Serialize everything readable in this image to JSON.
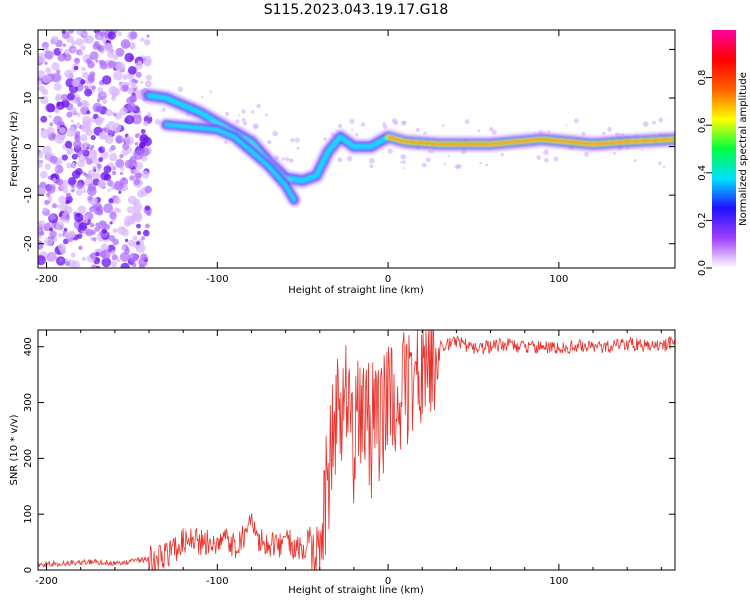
{
  "title": "S115.2023.043.19.17.G18",
  "colors": {
    "snr_line": "#e8312a",
    "frame": "#000000",
    "colormap": [
      "#ffffff",
      "#a040ff",
      "#2010ff",
      "#00e0ff",
      "#00ff40",
      "#ffff00",
      "#ff6000",
      "#ff0000",
      "#ff00a0"
    ]
  },
  "chart_data": [
    {
      "type": "heatmap",
      "title": "S115.2023.043.19.17.G18",
      "xlabel": "Height of straight line (km)",
      "ylabel": "Frequency (Hz)",
      "xlim": [
        -205,
        168
      ],
      "ylim": [
        -25,
        24
      ],
      "xticks": [
        -200,
        -100,
        0,
        100
      ],
      "yticks": [
        -20,
        -10,
        0,
        10,
        20
      ],
      "colorbar": {
        "label": "Normalized spectral amplitude",
        "range": [
          0,
          1
        ],
        "ticks": [
          "0.0",
          "0.2",
          "0.4",
          "0.6",
          "0.8"
        ]
      },
      "ridge": [
        {
          "x": -140,
          "y": 10.5
        },
        {
          "x": -130,
          "y": 10
        },
        {
          "x": -120,
          "y": 8.5
        },
        {
          "x": -110,
          "y": 7
        },
        {
          "x": -100,
          "y": 5
        },
        {
          "x": -90,
          "y": 3
        },
        {
          "x": -80,
          "y": 1
        },
        {
          "x": -70,
          "y": -3
        },
        {
          "x": -60,
          "y": -6.5
        },
        {
          "x": -50,
          "y": -7
        },
        {
          "x": -42,
          "y": -6
        },
        {
          "x": -35,
          "y": -1
        },
        {
          "x": -28,
          "y": 2
        },
        {
          "x": -20,
          "y": 0
        },
        {
          "x": -10,
          "y": 0
        },
        {
          "x": 0,
          "y": 2
        },
        {
          "x": 10,
          "y": 1
        },
        {
          "x": 30,
          "y": 0.5
        },
        {
          "x": 60,
          "y": 0.5
        },
        {
          "x": 90,
          "y": 1.5
        },
        {
          "x": 120,
          "y": 0.5
        },
        {
          "x": 140,
          "y": 1
        },
        {
          "x": 168,
          "y": 1.5
        }
      ],
      "branch": [
        {
          "x": -130,
          "y": 4.5
        },
        {
          "x": -115,
          "y": 4
        },
        {
          "x": -100,
          "y": 3.5
        },
        {
          "x": -90,
          "y": 2
        },
        {
          "x": -80,
          "y": -1
        },
        {
          "x": -70,
          "y": -4
        },
        {
          "x": -60,
          "y": -8
        },
        {
          "x": -55,
          "y": -11
        }
      ]
    },
    {
      "type": "line",
      "xlabel": "Height of straight line (km)",
      "ylabel": "SNR (10 * v/v)",
      "xlim": [
        -205,
        168
      ],
      "ylim": [
        0,
        430
      ],
      "xticks": [
        -200,
        -100,
        0,
        100
      ],
      "yticks": [
        0,
        100,
        200,
        300,
        400
      ],
      "series": [
        {
          "x": [
            -205,
            -190,
            -175,
            -160,
            -145,
            -135,
            -125,
            -120,
            -110,
            -100,
            -95,
            -90,
            -85,
            -80,
            -75,
            -70,
            -65,
            -60,
            -55,
            -50,
            -45,
            -40,
            -38,
            -35,
            -32,
            -30,
            -28,
            -25,
            -22,
            -20,
            -18,
            -15,
            -12,
            -10,
            -8,
            -5,
            -2,
            0,
            3,
            6,
            10,
            13,
            16,
            20,
            25,
            30,
            35,
            40,
            50,
            60,
            70,
            80,
            90,
            100,
            110,
            120,
            130,
            140,
            150,
            160,
            168
          ],
          "y": [
            10,
            12,
            15,
            12,
            18,
            20,
            35,
            55,
            50,
            45,
            65,
            40,
            55,
            80,
            50,
            45,
            40,
            60,
            45,
            40,
            60,
            30,
            100,
            170,
            250,
            300,
            200,
            320,
            280,
            140,
            330,
            250,
            300,
            200,
            320,
            260,
            290,
            310,
            300,
            280,
            330,
            340,
            350,
            370,
            390,
            400,
            405,
            410,
            395,
            400,
            405,
            398,
            400,
            395,
            402,
            398,
            400,
            405,
            402,
            400,
            410
          ]
        }
      ]
    }
  ]
}
